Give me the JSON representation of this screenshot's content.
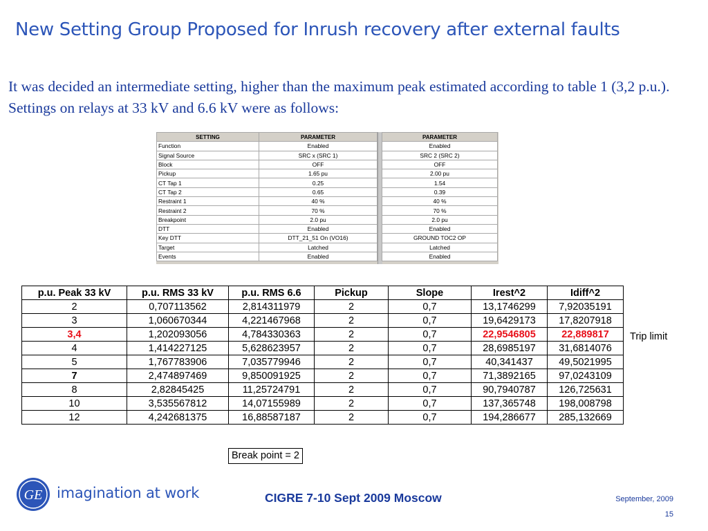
{
  "title": "New Setting Group Proposed for Inrush recovery after external faults",
  "intro": "It was decided an intermediate setting, higher than the maximum peak estimated according to table 1 (3,2 p.u.). Settings on relays at 33 kV and 6.6 kV were as follows:",
  "settings": {
    "headers": {
      "setting": "SETTING",
      "parameter": "PARAMETER",
      "parameter2": "PARAMETER"
    },
    "rows": [
      {
        "name": "Function",
        "v1": "Enabled",
        "v2": "Enabled"
      },
      {
        "name": "Signal Source",
        "v1": "SRC x (SRC 1)",
        "v2": "SRC 2 (SRC 2)"
      },
      {
        "name": "Block",
        "v1": "OFF",
        "v2": "OFF"
      },
      {
        "name": "Pickup",
        "v1": "1.65 pu",
        "v2": "2.00 pu"
      },
      {
        "name": "CT Tap 1",
        "v1": "0.25",
        "v2": "1.54"
      },
      {
        "name": "CT Tap 2",
        "v1": "0.65",
        "v2": "0.39"
      },
      {
        "name": "Restraint 1",
        "v1": "40 %",
        "v2": "40 %"
      },
      {
        "name": "Restraint 2",
        "v1": "70 %",
        "v2": "70 %"
      },
      {
        "name": "Breakpoint",
        "v1": "2.0 pu",
        "v2": "2.0 pu"
      },
      {
        "name": "DTT",
        "v1": "Enabled",
        "v2": "Enabled"
      },
      {
        "name": "Key DTT",
        "v1": "DTT_21_51 On (VO16)",
        "v2": "GROUND TOC2 OP"
      },
      {
        "name": "Target",
        "v1": "Latched",
        "v2": "Latched"
      },
      {
        "name": "Events",
        "v1": "Enabled",
        "v2": "Enabled"
      }
    ]
  },
  "table": {
    "headers": [
      "p.u. Peak 33 kV",
      "p.u. RMS 33 kV",
      "p.u. RMS 6.6",
      "Pickup",
      "Slope",
      "Irest^2",
      "Idiff^2"
    ],
    "rows": [
      [
        "2",
        "0,707113562",
        "2,814311979",
        "2",
        "0,7",
        "13,1746299",
        "7,92035191"
      ],
      [
        "3",
        "1,060670344",
        "4,221467968",
        "2",
        "0,7",
        "19,6429173",
        "17,8207918"
      ],
      [
        "3,4",
        "1,202093056",
        "4,784330363",
        "2",
        "0,7",
        "22,9546805",
        "22,889817"
      ],
      [
        "4",
        "1,414227125",
        "5,628623957",
        "2",
        "0,7",
        "28,6985197",
        "31,6814076"
      ],
      [
        "5",
        "1,767783906",
        "7,035779946",
        "2",
        "0,7",
        "40,341437",
        "49,5021995"
      ],
      [
        "7",
        "2,474897469",
        "9,850091925",
        "2",
        "0,7",
        "71,3892165",
        "97,0243109"
      ],
      [
        "8",
        "2,82845425",
        "11,25724791",
        "2",
        "0,7",
        "90,7940787",
        "126,725631"
      ],
      [
        "10",
        "3,535567812",
        "14,07155989",
        "2",
        "0,7",
        "137,365748",
        "198,008798"
      ],
      [
        "12",
        "4,242681375",
        "16,88587187",
        "2",
        "0,7",
        "194,286677",
        "285,132669"
      ]
    ],
    "highlight_color": "#e8101a"
  },
  "trip_limit": "Trip limit",
  "break_point": "Break point = 2",
  "footer": {
    "logo_text": "GE",
    "tagline": "imagination at work",
    "event": "CIGRE 7-10 Sept 2009 Moscow",
    "date": "September,  2009",
    "page": "15"
  }
}
